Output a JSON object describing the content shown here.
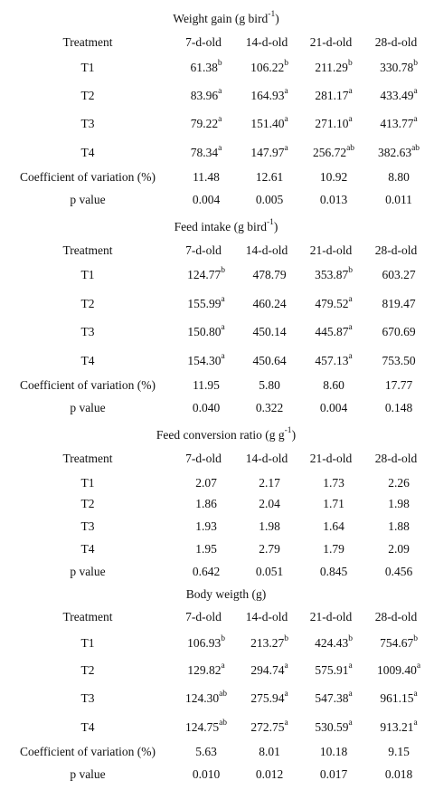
{
  "sections": [
    {
      "title": {
        "text": "Weight gain (g bird",
        "sup": "-1",
        "tail": ")"
      },
      "header": [
        "Treatment",
        "7-d-old",
        "14-d-old",
        "21-d-old",
        "28-d-old"
      ],
      "rows": [
        [
          "T1",
          {
            "text": "61.38",
            "sup": "b"
          },
          {
            "text": "106.22",
            "sup": "b"
          },
          {
            "text": "211.29",
            "sup": "b"
          },
          {
            "text": "330.78",
            "sup": "b"
          }
        ],
        [
          "T2",
          {
            "text": "83.96",
            "sup": "a"
          },
          {
            "text": "164.93",
            "sup": "a"
          },
          {
            "text": "281.17",
            "sup": "a"
          },
          {
            "text": "433.49",
            "sup": "a"
          }
        ],
        [
          "T3",
          {
            "text": "79.22",
            "sup": "a"
          },
          {
            "text": "151.40",
            "sup": "a"
          },
          {
            "text": "271.10",
            "sup": "a"
          },
          {
            "text": "413.77",
            "sup": "a"
          }
        ],
        [
          "T4",
          {
            "text": "78.34",
            "sup": "a"
          },
          {
            "text": "147.97",
            "sup": "a"
          },
          {
            "text": "256.72",
            "sup": "ab"
          },
          {
            "text": "382.63",
            "sup": "ab"
          }
        ],
        [
          "Coefficient of variation (%)",
          "11.48",
          "12.61",
          "10.92",
          "8.80"
        ],
        [
          "p value",
          "0.004",
          "0.005",
          "0.013",
          "0.011"
        ]
      ]
    },
    {
      "title": {
        "text": "Feed intake (g bird",
        "sup": "-1",
        "tail": ")"
      },
      "header": [
        "Treatment",
        "7-d-old",
        "14-d-old",
        "21-d-old",
        "28-d-old"
      ],
      "rows": [
        [
          "T1",
          {
            "text": "124.77",
            "sup": "b"
          },
          "478.79",
          {
            "text": "353.87",
            "sup": "b"
          },
          "603.27"
        ],
        [
          "T2",
          {
            "text": "155.99",
            "sup": "a"
          },
          "460.24",
          {
            "text": "479.52",
            "sup": "a"
          },
          "819.47"
        ],
        [
          "T3",
          {
            "text": "150.80",
            "sup": "a"
          },
          "450.14",
          {
            "text": "445.87",
            "sup": "a"
          },
          "670.69"
        ],
        [
          "T4",
          {
            "text": "154.30",
            "sup": "a"
          },
          "450.64",
          {
            "text": "457.13",
            "sup": "a"
          },
          "753.50"
        ],
        [
          "Coefficient of variation (%)",
          "11.95",
          "5.80",
          "8.60",
          "17.77"
        ],
        [
          "p value",
          "0.040",
          "0.322",
          "0.004",
          "0.148"
        ]
      ]
    },
    {
      "title": {
        "text": "Feed conversion ratio (g g",
        "sup": "-1",
        "tail": ")"
      },
      "header": [
        "Treatment",
        "7-d-old",
        "14-d-old",
        "21-d-old",
        "28-d-old"
      ],
      "rows": [
        [
          "T1",
          "2.07",
          "2.17",
          "1.73",
          "2.26"
        ],
        [
          "T2",
          "1.86",
          "2.04",
          "1.71",
          "1.98"
        ],
        [
          "T3",
          "1.93",
          "1.98",
          "1.64",
          "1.88"
        ],
        [
          "T4",
          "1.95",
          "2.79",
          "1.79",
          "2.09"
        ],
        [
          "p value",
          "0.642",
          "0.051",
          "0.845",
          "0.456"
        ]
      ]
    },
    {
      "title": {
        "text": "Body weigth (g)"
      },
      "header": [
        "Treatment",
        "7-d-old",
        "14-d-old",
        "21-d-old",
        "28-d-old"
      ],
      "rows": [
        [
          "T1",
          {
            "text": "106.93",
            "sup": "b"
          },
          {
            "text": "213.27",
            "sup": "b"
          },
          {
            "text": "424.43",
            "sup": "b"
          },
          {
            "text": "754.67",
            "sup": "b"
          }
        ],
        [
          "T2",
          {
            "text": "129.82",
            "sup": "a"
          },
          {
            "text": "294.74",
            "sup": "a"
          },
          {
            "text": "575.91",
            "sup": "a"
          },
          {
            "text": "1009.40",
            "sup": "a"
          }
        ],
        [
          "T3",
          {
            "text": "124.30",
            "sup": "ab"
          },
          {
            "text": "275.94",
            "sup": "a"
          },
          {
            "text": "547.38",
            "sup": "a"
          },
          {
            "text": "961.15",
            "sup": "a"
          }
        ],
        [
          "T4",
          {
            "text": "124.75",
            "sup": "ab"
          },
          {
            "text": "272.75",
            "sup": "a"
          },
          {
            "text": "530.59",
            "sup": "a"
          },
          {
            "text": "913.21",
            "sup": "a"
          }
        ],
        [
          "Coefficient of variation (%)",
          "5.63",
          "8.01",
          "10.18",
          "9.15"
        ],
        [
          "p value",
          "0.010",
          "0.012",
          "0.017",
          "0.018"
        ]
      ]
    }
  ]
}
